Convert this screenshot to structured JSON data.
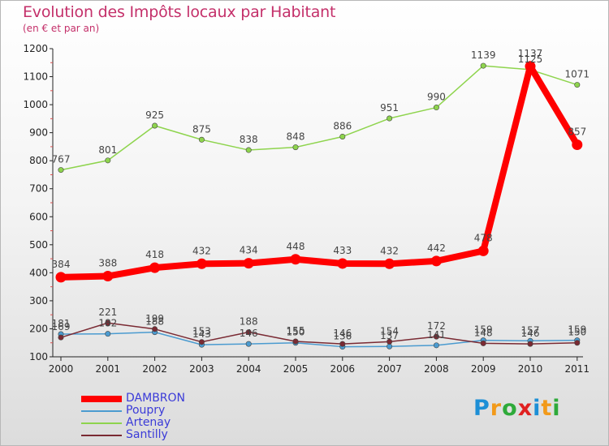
{
  "title": "Evolution des Impôts locaux par Habitant",
  "subtitle": "(en € et par an)",
  "logo": {
    "text": "Proxiti",
    "letters": [
      "P",
      "r",
      "o",
      "x",
      "i",
      "t",
      "i"
    ],
    "colors": [
      "#1d8fd6",
      "#f29a1a",
      "#2eaa3a",
      "#e02020",
      "#1d8fd6",
      "#f29a1a",
      "#2eaa3a"
    ]
  },
  "chart_data": {
    "type": "line",
    "title": "Evolution des Impôts locaux par Habitant",
    "subtitle": "(en € et par an)",
    "xlabel": "",
    "ylabel": "",
    "ylim": [
      100,
      1200
    ],
    "yticks": [
      "100",
      "200",
      "300",
      "400",
      "500",
      "600",
      "700",
      "800",
      "900",
      "1000",
      "1100",
      "1200"
    ],
    "categories": [
      "2000",
      "2001",
      "2002",
      "2003",
      "2004",
      "2005",
      "2006",
      "2007",
      "2008",
      "2009",
      "2010",
      "2011"
    ],
    "grid": false,
    "legend_position": "bottom-left",
    "series": [
      {
        "name": "DAMBRON",
        "color": "#ff0000",
        "emphasis": true,
        "values": [
          384,
          388,
          418,
          432,
          434,
          448,
          433,
          432,
          442,
          478,
          1137,
          857
        ],
        "labels": [
          "384",
          "388",
          "418",
          "432",
          "434",
          "448",
          "433",
          "432",
          "442",
          "478",
          "1137",
          "857"
        ]
      },
      {
        "name": "Poupry",
        "color": "#4b9bd0",
        "emphasis": false,
        "values": [
          181,
          182,
          188,
          143,
          146,
          150,
          136,
          137,
          141,
          159,
          157,
          159
        ],
        "labels": [
          "181",
          "182",
          "188",
          "143",
          "146",
          "150",
          "136",
          "137",
          "141",
          "159",
          "157",
          "159"
        ]
      },
      {
        "name": "Artenay",
        "color": "#8ed44d",
        "emphasis": false,
        "values": [
          767,
          801,
          925,
          875,
          838,
          848,
          886,
          951,
          990,
          1139,
          1125,
          1071
        ],
        "labels": [
          "767",
          "801",
          "925",
          "875",
          "838",
          "848",
          "886",
          "951",
          "990",
          "1139",
          "1125",
          "1071"
        ]
      },
      {
        "name": "Santilly",
        "color": "#7a2a33",
        "emphasis": false,
        "values": [
          169,
          221,
          199,
          153,
          188,
          155,
          146,
          154,
          172,
          148,
          146,
          150
        ],
        "labels": [
          "169",
          "221",
          "199",
          "153",
          "188",
          "155",
          "146",
          "154",
          "172",
          "148",
          "146",
          "150"
        ]
      }
    ]
  }
}
